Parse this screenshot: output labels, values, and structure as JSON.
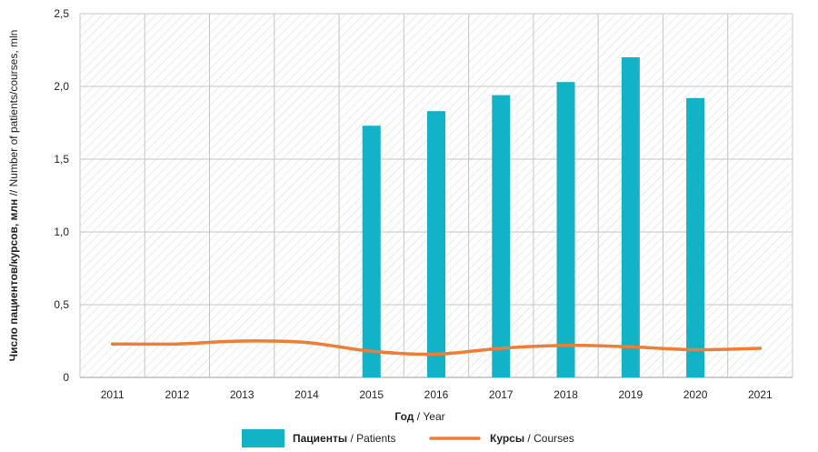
{
  "chart_data": {
    "type": "bar",
    "categories": [
      "2011",
      "2012",
      "2013",
      "2014",
      "2015",
      "2016",
      "2017",
      "2018",
      "2019",
      "2020",
      "2021"
    ],
    "series": [
      {
        "name": "Пациенты / Patients",
        "name_bold": "Пациенты",
        "name_light": "Patients",
        "type": "bar",
        "color": "#12b3c7",
        "values": [
          null,
          null,
          null,
          null,
          1.73,
          1.83,
          1.94,
          2.03,
          2.2,
          1.92,
          null
        ]
      },
      {
        "name": "Курсы / Courses",
        "name_bold": "Курсы",
        "name_light": "Courses",
        "type": "line",
        "color": "#ee7d35",
        "values": [
          0.23,
          0.23,
          0.25,
          0.24,
          0.18,
          0.16,
          0.2,
          0.22,
          0.21,
          0.19,
          0.2
        ]
      }
    ],
    "xlabel_bold": "Год",
    "xlabel_light": "Year",
    "ylabel_bold": "Число пациентов/курсов, млн",
    "ylabel_light": "Number of patients/courses, mln",
    "ylim": [
      0,
      2.5
    ],
    "yticks": [
      0,
      0.5,
      1.0,
      1.5,
      2.0,
      2.5
    ],
    "ytick_labels": [
      "0",
      "0,5",
      "1,0",
      "1,5",
      "2,0",
      "2,5"
    ],
    "grid": true,
    "background": "hatched",
    "legend_position": "bottom"
  }
}
